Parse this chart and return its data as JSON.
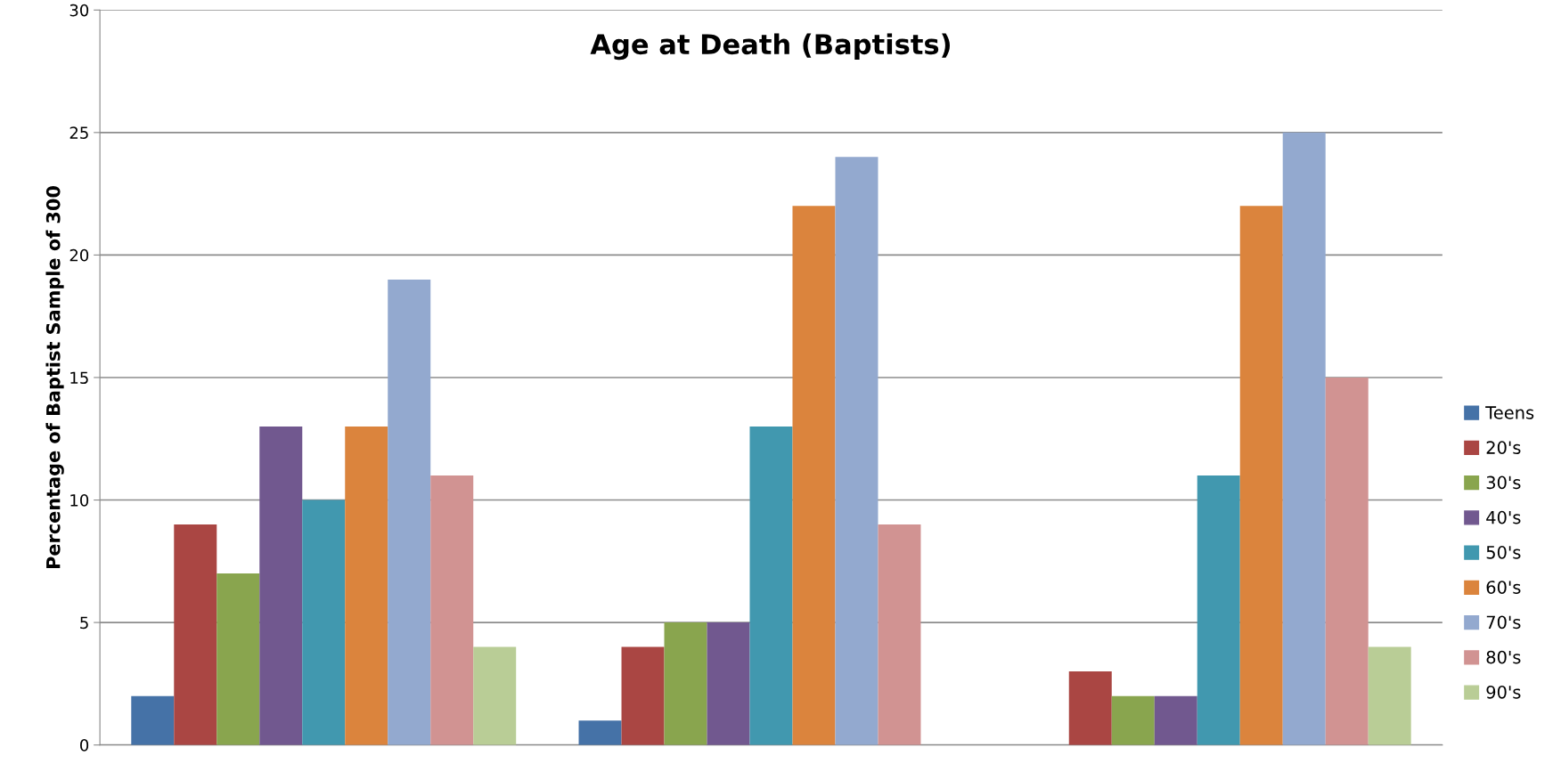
{
  "chart_data": {
    "type": "bar",
    "title": "Age at Death (Baptists)",
    "ylabel": "Percentage of Baptist Sample of 300",
    "categories": [
      null,
      null,
      null
    ],
    "series": [
      {
        "name": "Teens",
        "color": "#4572a7",
        "values": [
          2,
          1,
          0
        ]
      },
      {
        "name": "20's",
        "color": "#aa4643",
        "values": [
          9,
          4,
          3
        ]
      },
      {
        "name": "30's",
        "color": "#89a54e",
        "values": [
          7,
          5,
          2
        ]
      },
      {
        "name": "40's",
        "color": "#71588f",
        "values": [
          13,
          5,
          2
        ]
      },
      {
        "name": "50's",
        "color": "#4198af",
        "values": [
          10,
          13,
          11
        ]
      },
      {
        "name": "60's",
        "color": "#db843d",
        "values": [
          13,
          22,
          22
        ]
      },
      {
        "name": "70's",
        "color": "#93a9cf",
        "values": [
          19,
          24,
          25
        ]
      },
      {
        "name": "80's",
        "color": "#d19392",
        "values": [
          11,
          9,
          15
        ]
      },
      {
        "name": "90's",
        "color": "#b9cd96",
        "values": [
          4,
          0,
          4
        ]
      }
    ],
    "ylim": [
      0,
      30
    ],
    "yticks": [
      0,
      5,
      10,
      15,
      20,
      25,
      30
    ],
    "grid": "y",
    "legend": "right"
  }
}
